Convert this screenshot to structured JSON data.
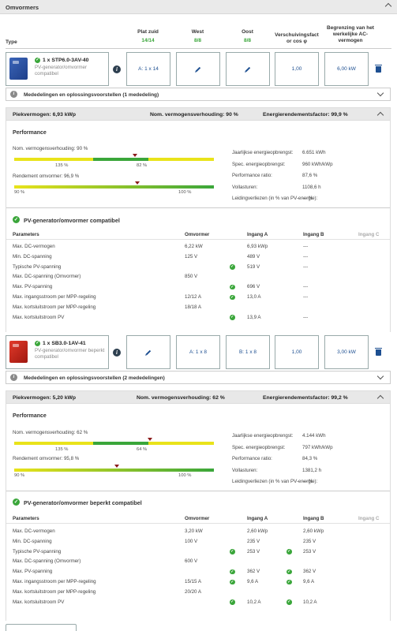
{
  "header": {
    "title": "Omvormers"
  },
  "columns": {
    "type": "Type",
    "plat_zuid": {
      "label": "Plat zuid",
      "count": "14/14"
    },
    "west": {
      "label": "West",
      "count": "8/8"
    },
    "oost": {
      "label": "Oost",
      "count": "8/8"
    },
    "verschuiving": "Verschuivingsfact or cos φ",
    "begrenzing": "Begrenzing van het werkelijke AC-vermogen"
  },
  "inverters": [
    {
      "name": "1 x STP6.0-3AV-40",
      "subtitle": "PV-generator/omvormer compatibel",
      "image_color": "#2f56a8",
      "plat_zuid": "A: 1 x 14",
      "west": "",
      "oost": "",
      "cos_phi": "1,00",
      "ac_power": "6,00 kW",
      "messages": "Mededelingen en oplossingsvoorstellen (1 mededeling)",
      "summary": {
        "peak": "Piekvermogen: 6,93 kWp",
        "ratio": "Nom. vermogensverhouding: 90 %",
        "efficiency": "Energierendementsfactor: 99,9 %"
      },
      "performance": {
        "title": "Performance",
        "ratio_label": "Nom. vermogensverhouding: 90 %",
        "ratio_ticks": [
          "135 %",
          "82 %"
        ],
        "ratio_value": 0.9,
        "eff_label": "Rendement omvormer: 96,9 %",
        "eff_ticks": [
          "90 %",
          "100 %"
        ],
        "eff_value": 0.969,
        "stats": [
          {
            "k": "Jaarlijkse energieopbrengst:",
            "v": "6.651 kWh"
          },
          {
            "k": "Spec. energieopbrengst:",
            "v": "960 kWh/kWp"
          },
          {
            "k": "Performance ratio:",
            "v": "87,6 %"
          },
          {
            "k": "Vollasturen:",
            "v": "1108,6 h"
          },
          {
            "k": "Leidingverliezen (in % van PV-energie):",
            "v": "--- %"
          }
        ]
      },
      "compat": {
        "title": "PV-generator/omvormer compatibel",
        "headers": [
          "Parameters",
          "Omvormer",
          "Ingang A",
          "Ingang B",
          "Ingang C"
        ],
        "rows": [
          {
            "p": "Max. DC-vermogen",
            "o": "6,22 kW",
            "a": "6,93 kWp",
            "a_ok": false,
            "b": "---",
            "b_ok": false
          },
          {
            "p": "Min. DC-spanning",
            "o": "125 V",
            "a": "489 V",
            "a_ok": false,
            "b": "---",
            "b_ok": false
          },
          {
            "p": "Typische PV-spanning",
            "o": "",
            "a": "519 V",
            "a_ok": true,
            "b": "---",
            "b_ok": false
          },
          {
            "p": "Max. DC-spanning (Omvormer)",
            "o": "850 V",
            "a": "",
            "a_ok": false,
            "b": "",
            "b_ok": false
          },
          {
            "p": "Max. PV-spanning",
            "o": "",
            "a": "696 V",
            "a_ok": true,
            "b": "---",
            "b_ok": false
          },
          {
            "p": "Max. ingangsstroom per MPP-regeling",
            "o": "12/12 A",
            "a": "13,0 A",
            "a_ok": true,
            "b": "---",
            "b_ok": false
          },
          {
            "p": "Max. kortsluitstroom per MPP-regeling",
            "o": "18/18 A",
            "a": "",
            "a_ok": false,
            "b": "",
            "b_ok": false
          },
          {
            "p": "Max. kortsluitstroom PV",
            "o": "",
            "a": "13,9 A",
            "a_ok": true,
            "b": "---",
            "b_ok": false
          }
        ]
      }
    },
    {
      "name": "1 x SB3.0-1AV-41",
      "subtitle": "PV-generator/omvormer beperkt compatibel",
      "image_color": "#d8322a",
      "plat_zuid": "",
      "west": "A: 1 x 8",
      "oost": "B: 1 x 8",
      "cos_phi": "1,00",
      "ac_power": "3,00 kW",
      "messages": "Mededelingen en oplossingsvoorstellen (2 mededelingen)",
      "summary": {
        "peak": "Piekvermogen: 5,20 kWp",
        "ratio": "Nom. vermogensverhouding: 62 %",
        "efficiency": "Energierendementsfactor: 99,2 %"
      },
      "performance": {
        "title": "Performance",
        "ratio_label": "Nom. vermogensverhouding: 62 %",
        "ratio_ticks": [
          "135 %",
          "64 %"
        ],
        "ratio_value": 0.62,
        "eff_label": "Rendement omvormer: 95,8 %",
        "eff_ticks": [
          "90 %",
          "100 %"
        ],
        "eff_value": 0.958,
        "stats": [
          {
            "k": "Jaarlijkse energieopbrengst:",
            "v": "4.144 kWh"
          },
          {
            "k": "Spec. energieopbrengst:",
            "v": "797 kWh/kWp"
          },
          {
            "k": "Performance ratio:",
            "v": "84,3 %"
          },
          {
            "k": "Vollasturen:",
            "v": "1381,2 h"
          },
          {
            "k": "Leidingverliezen (in % van PV-energie):",
            "v": "--- %"
          }
        ]
      },
      "compat": {
        "title": "PV-generator/omvormer beperkt compatibel",
        "headers": [
          "Parameters",
          "Omvormer",
          "Ingang A",
          "Ingang B",
          "Ingang C"
        ],
        "rows": [
          {
            "p": "Max. DC-vermogen",
            "o": "3,20 kW",
            "a": "2,60 kWp",
            "a_ok": false,
            "b": "2,60 kWp",
            "b_ok": false
          },
          {
            "p": "Min. DC-spanning",
            "o": "100 V",
            "a": "235 V",
            "a_ok": false,
            "b": "235 V",
            "b_ok": false
          },
          {
            "p": "Typische PV-spanning",
            "o": "",
            "a": "253 V",
            "a_ok": true,
            "b": "253 V",
            "b_ok": true
          },
          {
            "p": "Max. DC-spanning (Omvormer)",
            "o": "600 V",
            "a": "",
            "a_ok": false,
            "b": "",
            "b_ok": false
          },
          {
            "p": "Max. PV-spanning",
            "o": "",
            "a": "362 V",
            "a_ok": true,
            "b": "362 V",
            "b_ok": true
          },
          {
            "p": "Max. ingangsstroom per MPP-regeling",
            "o": "15/15 A",
            "a": "9,6 A",
            "a_ok": true,
            "b": "9,6 A",
            "b_ok": true
          },
          {
            "p": "Max. kortsluitstroom per MPP-regeling",
            "o": "20/20 A",
            "a": "",
            "a_ok": false,
            "b": "",
            "b_ok": false
          },
          {
            "p": "Max. kortsluitstroom PV",
            "o": "",
            "a": "10,2 A",
            "a_ok": true,
            "b": "10,2 A",
            "b_ok": true
          }
        ]
      }
    }
  ],
  "colors": {
    "ok": "#3aa63a",
    "accent": "#1d4f91",
    "bar_yellow": "#e9e31a",
    "marker": "#8b1a1a"
  }
}
